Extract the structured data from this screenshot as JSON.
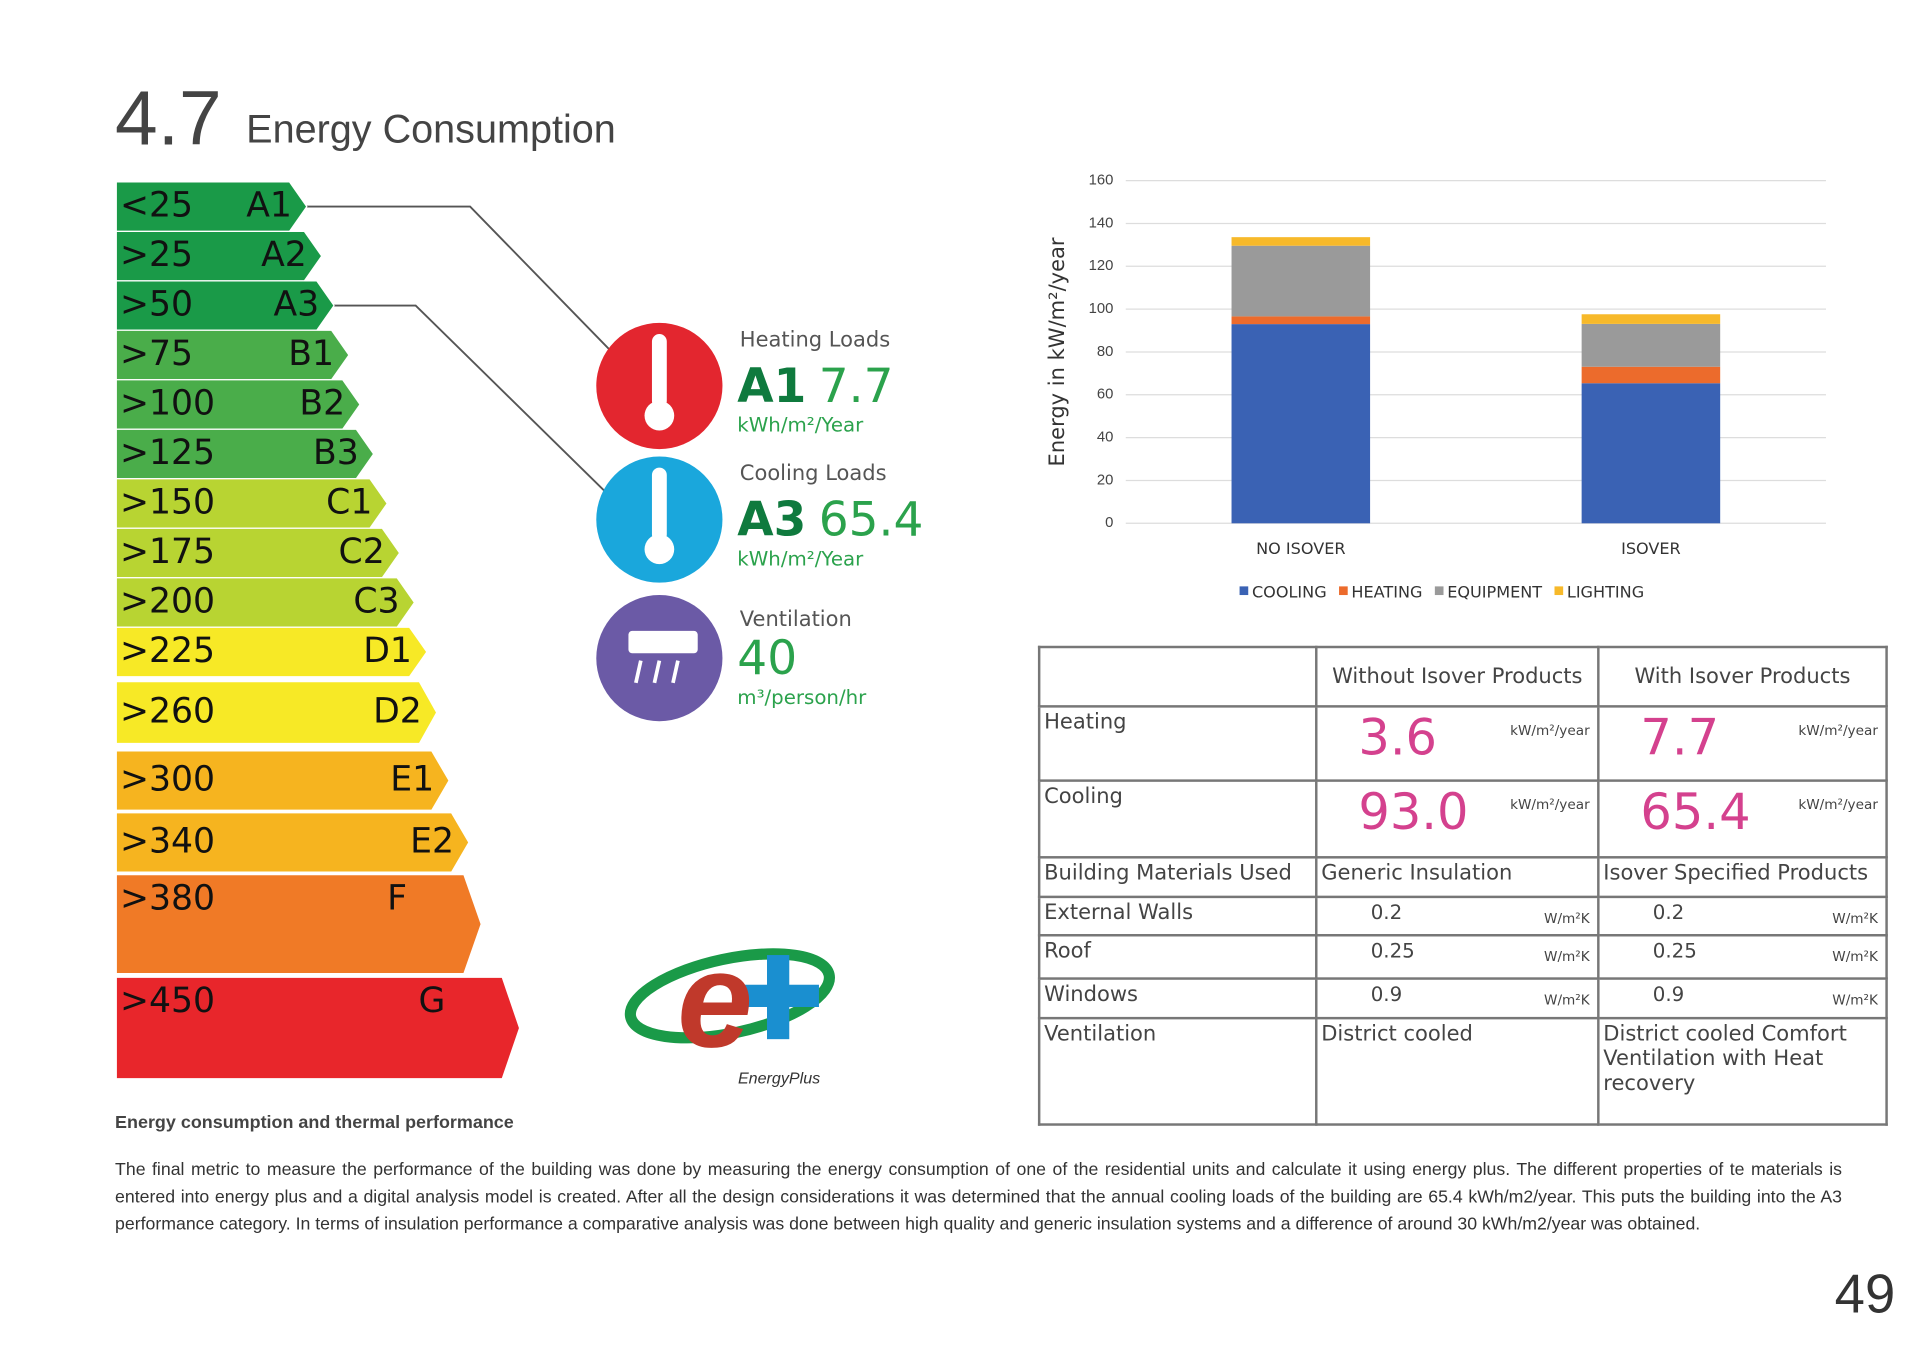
{
  "header": {
    "number": "4.7",
    "title": "Energy Consumption"
  },
  "energy_label": {
    "bands": [
      {
        "range": "<25",
        "class": "A1",
        "color": "#1a9a48"
      },
      {
        "range": ">25",
        "class": "A2",
        "color": "#1a9a48"
      },
      {
        "range": ">50",
        "class": "A3",
        "color": "#1a9a48"
      },
      {
        "range": ">75",
        "class": "B1",
        "color": "#4aad4a"
      },
      {
        "range": ">100",
        "class": "B2",
        "color": "#4aad4a"
      },
      {
        "range": ">125",
        "class": "B3",
        "color": "#4aad4a"
      },
      {
        "range": ">150",
        "class": "C1",
        "color": "#b8d432"
      },
      {
        "range": ">175",
        "class": "C2",
        "color": "#b8d432"
      },
      {
        "range": ">200",
        "class": "C3",
        "color": "#b8d432"
      },
      {
        "range": ">225",
        "class": "D1",
        "color": "#f7e926"
      },
      {
        "range": ">260",
        "class": "D2",
        "color": "#f7e926"
      },
      {
        "range": ">300",
        "class": "E1",
        "color": "#f6b41f"
      },
      {
        "range": ">340",
        "class": "E2",
        "color": "#f6b41f"
      },
      {
        "range": ">380",
        "class": "F",
        "color": "#f07a26"
      },
      {
        "range": ">450",
        "class": "G",
        "color": "#e8262b"
      }
    ]
  },
  "indicators": [
    {
      "title": "Heating Loads",
      "grade": "A1",
      "value": "7.7",
      "unit": "kWh/m²/Year",
      "color": "#e3262f"
    },
    {
      "title": "Cooling Loads",
      "grade": "A3",
      "value": "65.4",
      "unit": "kWh/m²/Year",
      "color": "#1aa7dc"
    },
    {
      "title": "Ventilation",
      "value": "40",
      "unit": "m³/person/hr",
      "color": "#6b5aa6"
    }
  ],
  "logo": {
    "text": "EnergyPlus"
  },
  "chart_data": {
    "type": "bar",
    "stacked": true,
    "y_label": "Energy in kW/m²/year",
    "categories": [
      "NO ISOVER",
      "ISOVER"
    ],
    "series": [
      {
        "name": "COOLING",
        "color": "#3a62b4",
        "values": [
          93,
          65.4
        ]
      },
      {
        "name": "HEATING",
        "color": "#ec6b2c",
        "values": [
          3.6,
          7.7
        ]
      },
      {
        "name": "EQUIPMENT",
        "color": "#9a9a9a",
        "values": [
          33,
          20
        ]
      },
      {
        "name": "LIGHTING",
        "color": "#f7b92a",
        "values": [
          4,
          4.5
        ]
      }
    ],
    "ylim": [
      0,
      160
    ],
    "yticks": [
      0,
      20,
      40,
      60,
      80,
      100,
      120,
      140,
      160
    ],
    "grid": true,
    "legend": "bottom"
  },
  "table": {
    "header": [
      "Without Isover Products",
      "With Isover Products"
    ],
    "rows": [
      {
        "label": "Heating",
        "cells": [
          {
            "value": "3.6",
            "unit": "kW/m²/year"
          },
          {
            "value": "7.7",
            "unit": "kW/m²/year"
          }
        ]
      },
      {
        "label": "Cooling",
        "cells": [
          {
            "value": "93.0",
            "unit": "kW/m²/year"
          },
          {
            "value": "65.4",
            "unit": "kW/m²/year"
          }
        ]
      },
      {
        "label": "Building Materials Used",
        "cells": [
          {
            "value": "Generic Insulation"
          },
          {
            "value": "Isover Specified Products"
          }
        ]
      },
      {
        "label": "External Walls",
        "cells": [
          {
            "value": "0.2",
            "unit": "W/m²K"
          },
          {
            "value": "0.2",
            "unit": "W/m²K"
          }
        ]
      },
      {
        "label": "Roof",
        "cells": [
          {
            "value": "0.25",
            "unit": "W/m²K"
          },
          {
            "value": "0.25",
            "unit": "W/m²K"
          }
        ]
      },
      {
        "label": "Windows",
        "cells": [
          {
            "value": "0.9",
            "unit": "W/m²K"
          },
          {
            "value": "0.9",
            "unit": "W/m²K"
          }
        ]
      },
      {
        "label": "Ventilation",
        "cells": [
          {
            "value": "District cooled"
          },
          {
            "value": "District cooled Comfort Ventilation with Heat recovery"
          }
        ]
      }
    ]
  },
  "caption": "Energy consumption and thermal performance",
  "body": "The final metric to measure the performance of the building was done by measuring the energy consumption of one of the residential units and calculate it using energy plus. The different properties of te materials is entered into energy plus and a digital analysis model is created. After all the design considerations it was determined that the annual cooling loads of the building are 65.4 kWh/m2/year. This puts the building into the A3 performance category. In terms of insulation performance a comparative analysis was done between high quality and generic insulation systems and a difference of around 30 kWh/m2/year was obtained.",
  "page_number": "49"
}
